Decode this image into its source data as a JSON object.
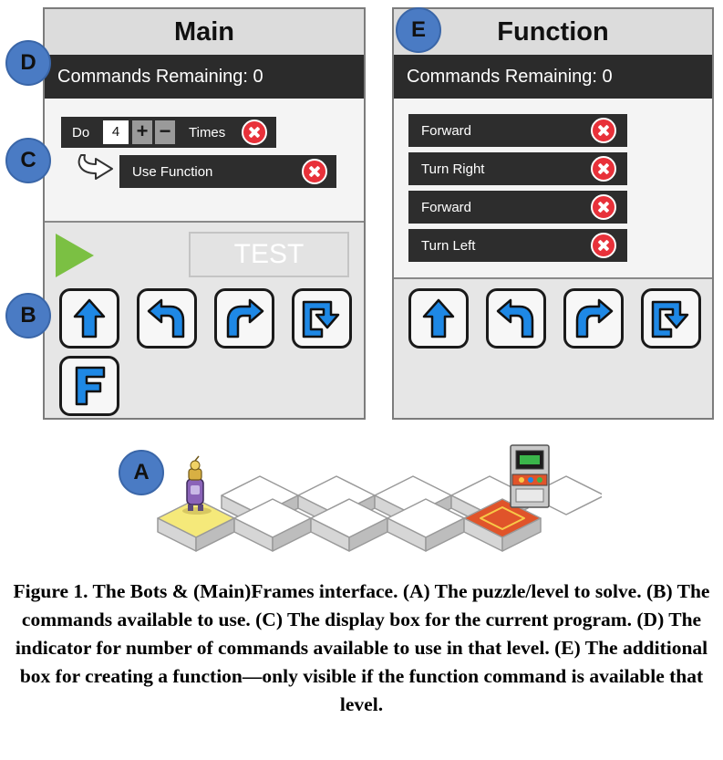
{
  "main_panel": {
    "title": "Main",
    "commands_remaining": "Commands Remaining: 0",
    "program": {
      "loop_do": "Do",
      "loop_count": "4",
      "loop_times": "Times",
      "use_function": "Use Function"
    },
    "test_label": "TEST",
    "tools": [
      {
        "name": "forward-arrow-icon"
      },
      {
        "name": "turn-left-arrow-icon"
      },
      {
        "name": "turn-right-arrow-icon"
      },
      {
        "name": "loop-icon"
      },
      {
        "name": "function-icon"
      }
    ]
  },
  "function_panel": {
    "title": "Function",
    "commands_remaining": "Commands Remaining: 0",
    "commands": [
      "Forward",
      "Turn Right",
      "Forward",
      "Turn Left"
    ]
  },
  "labels": {
    "a": "A",
    "b": "B",
    "c": "C",
    "d": "D",
    "e": "E"
  },
  "caption": "Figure 1. The Bots & (Main)Frames interface. (A) The puzzle/level to solve. (B) The commands available to use. (C) The display box for the current program. (D) The indicator for number of commands available to use in that level. (E) The additional box for creating a function—only visible if the function command is available that level.",
  "colors": {
    "accent_blue": "#1e88e5",
    "remove_red": "#e8313a",
    "play_green": "#7bc043",
    "goal_red": "#e0542a",
    "start_yellow": "#f5e97a"
  }
}
